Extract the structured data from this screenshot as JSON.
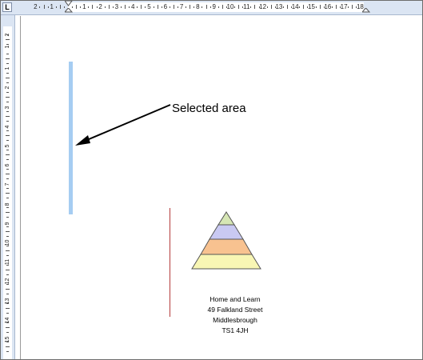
{
  "ruler": {
    "tab_stop": "L",
    "horizontal_numbers": [
      "2",
      "1",
      "1",
      "2",
      "3",
      "4",
      "5",
      "6",
      "7",
      "8",
      "9",
      "10",
      "11",
      "12",
      "13",
      "14",
      "15",
      "16",
      "17",
      "18"
    ],
    "vertical_numbers": [
      "2",
      "1",
      "1",
      "2",
      "3",
      "4",
      "5",
      "6",
      "7",
      "8",
      "9",
      "10",
      "11",
      "12",
      "13",
      "14",
      "15"
    ]
  },
  "document": {
    "annotation": "Selected area",
    "address": {
      "line1": "Home and Learn",
      "line2": "49 Falkland Street",
      "line3": "Middlesbrough",
      "line4": "TS1 4JH"
    },
    "pyramid_colors": [
      "#d6e6b4",
      "#c9c9f2",
      "#f8c290",
      "#f8f6b4"
    ]
  }
}
